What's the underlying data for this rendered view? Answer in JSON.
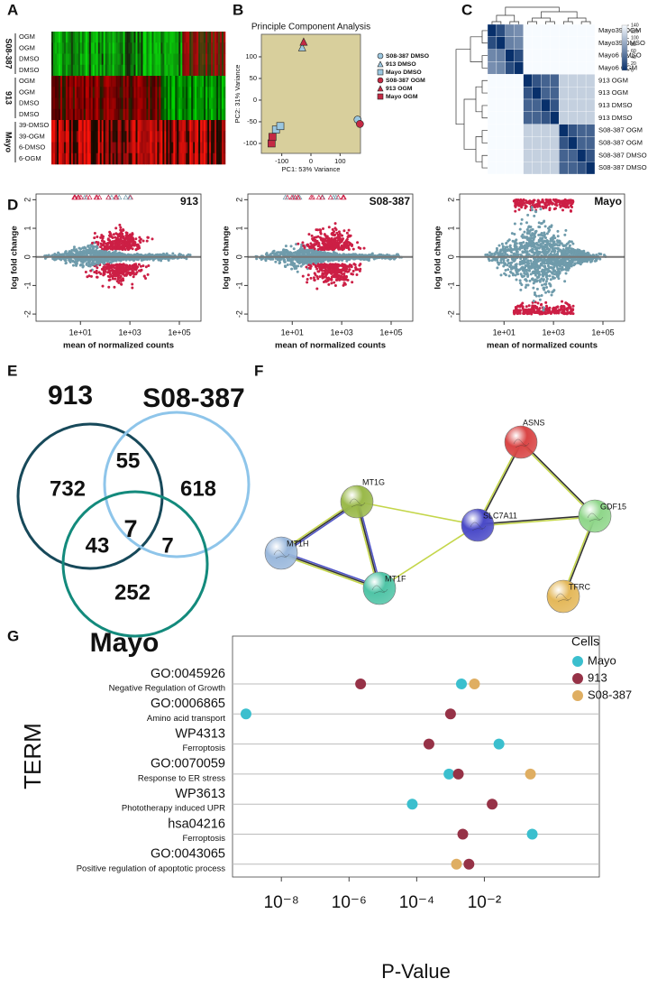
{
  "panel_labels": [
    "A",
    "B",
    "C",
    "D",
    "E",
    "F",
    "G"
  ],
  "heatmap_a": {
    "groups": [
      {
        "name": "S08-387",
        "rows": [
          "OGM",
          "OGM",
          "DMSO",
          "DMSO"
        ]
      },
      {
        "name": "913",
        "rows": [
          "OGM",
          "OGM",
          "DMSO",
          "DMSO"
        ]
      },
      {
        "name": "Mayo",
        "rows": [
          "39-DMSO",
          "39-OGM",
          "6-DMSO",
          "6-OGM"
        ]
      }
    ]
  },
  "chart_data": [
    {
      "type": "scatter",
      "title": "Principle Component Analysis",
      "xlabel": "PC1: 53% Variance",
      "ylabel": "PC2: 31% Variance",
      "xlim": [
        -170,
        170
      ],
      "ylim": [
        -123,
        152
      ],
      "xticks": [
        -100,
        0,
        100
      ],
      "yticks": [
        -100,
        -50,
        0,
        50,
        100
      ],
      "background": "#d8cf9c",
      "series": [
        {
          "name": "S08-387 DMSO",
          "color": "#9bc7e0",
          "marker": "circle",
          "x": [
            160
          ],
          "y": [
            -45
          ]
        },
        {
          "name": "913 DMSO",
          "color": "#9bc7e0",
          "marker": "triangle",
          "x": [
            -30
          ],
          "y": [
            122
          ]
        },
        {
          "name": "Mayo DMSO",
          "color": "#9bc7e0",
          "marker": "square",
          "x": [
            -120,
            -105
          ],
          "y": [
            -68,
            -60
          ]
        },
        {
          "name": "S08-387 OGM",
          "color": "#c42a44",
          "marker": "circle",
          "x": [
            168
          ],
          "y": [
            -55
          ]
        },
        {
          "name": "913 OGM",
          "color": "#c42a44",
          "marker": "triangle",
          "x": [
            -25
          ],
          "y": [
            135
          ]
        },
        {
          "name": "Mayo OGM",
          "color": "#c42a44",
          "marker": "square",
          "x": [
            -135,
            -132
          ],
          "y": [
            -100,
            -85
          ]
        }
      ]
    },
    {
      "type": "heatmap",
      "rows": [
        "Mayo39 OGM",
        "Mayo39 DMSO",
        "Mayo6 DMSO",
        "Mayo6 OGM",
        "913 OGM",
        "913 OGM",
        "913 DMSO",
        "913 DMSO",
        "S08-387 OGM",
        "S08-387 OGM",
        "S08-387 DMSO",
        "S08-387 DMSO"
      ],
      "values": [
        [
          0,
          20,
          60,
          65,
          140,
          140,
          140,
          140,
          140,
          140,
          140,
          140
        ],
        [
          20,
          0,
          55,
          60,
          140,
          140,
          140,
          140,
          140,
          140,
          140,
          140
        ],
        [
          60,
          55,
          0,
          20,
          140,
          140,
          140,
          140,
          140,
          140,
          140,
          140
        ],
        [
          65,
          60,
          20,
          0,
          140,
          140,
          140,
          140,
          140,
          140,
          140,
          140
        ],
        [
          140,
          140,
          140,
          140,
          0,
          25,
          35,
          35,
          110,
          110,
          110,
          110
        ],
        [
          140,
          140,
          140,
          140,
          25,
          0,
          35,
          35,
          110,
          110,
          110,
          110
        ],
        [
          140,
          140,
          140,
          140,
          35,
          35,
          0,
          25,
          110,
          110,
          110,
          110
        ],
        [
          140,
          140,
          140,
          140,
          35,
          35,
          25,
          0,
          110,
          110,
          110,
          110
        ],
        [
          140,
          140,
          140,
          140,
          110,
          110,
          110,
          110,
          0,
          25,
          35,
          35
        ],
        [
          140,
          140,
          140,
          140,
          110,
          110,
          110,
          110,
          25,
          0,
          35,
          35
        ],
        [
          140,
          140,
          140,
          140,
          110,
          110,
          110,
          110,
          35,
          35,
          0,
          25
        ],
        [
          140,
          140,
          140,
          140,
          110,
          110,
          110,
          110,
          35,
          35,
          25,
          0
        ]
      ],
      "zlim": [
        0,
        140
      ],
      "zticks": [
        0,
        20,
        40,
        60,
        80,
        100,
        120,
        140
      ],
      "color_low": "#08306b",
      "color_high": "#f7fbff"
    },
    {
      "type": "ma",
      "title": "913",
      "xlabel": "mean of normalized counts",
      "ylabel": "log fold change",
      "log_x": true,
      "xlim": [
        0.16,
        750000
      ],
      "ylim": [
        -2.25,
        2.2
      ],
      "xticks": [
        {
          "value": 10,
          "label": "1e+01"
        },
        {
          "value": 1000,
          "label": "1e+03"
        },
        {
          "value": 100000,
          "label": "1e+05"
        }
      ],
      "yticks": [
        -2,
        -1,
        0,
        1,
        2
      ]
    },
    {
      "type": "ma",
      "title": "S08-387",
      "xlabel": "mean of normalized counts",
      "ylabel": "log fold change",
      "log_x": true,
      "xlim": [
        0.16,
        750000
      ],
      "ylim": [
        -2.25,
        2.2
      ],
      "xticks": [
        {
          "value": 10,
          "label": "1e+01"
        },
        {
          "value": 1000,
          "label": "1e+03"
        },
        {
          "value": 100000,
          "label": "1e+05"
        }
      ],
      "yticks": [
        -2,
        -1,
        0,
        1,
        2
      ]
    },
    {
      "type": "ma",
      "title": "Mayo",
      "xlabel": "mean of normalized counts",
      "ylabel": "log fold change",
      "log_x": true,
      "xlim": [
        0.16,
        750000
      ],
      "ylim": [
        -2.25,
        2.2
      ],
      "xticks": [
        {
          "value": 10,
          "label": "1e+01"
        },
        {
          "value": 1000,
          "label": "1e+03"
        },
        {
          "value": 100000,
          "label": "1e+05"
        }
      ],
      "yticks": [
        -2,
        -1,
        0,
        1,
        2
      ]
    },
    {
      "type": "dot",
      "xlabel": "P-Value",
      "ylabel": "TERM",
      "legend_title": "Cells",
      "log_x": true,
      "xlim": [
        3.6e-10,
        25
      ],
      "xticks": [
        {
          "value": 1e-08,
          "label": "10⁻⁸"
        },
        {
          "value": 1e-06,
          "label": "10⁻⁶"
        },
        {
          "value": 0.0001,
          "label": "10⁻⁴"
        },
        {
          "value": 0.01,
          "label": "10⁻²"
        }
      ],
      "categories": [
        "GO:0045926",
        "GO:0006865",
        "WP4313",
        "GO:0070059",
        "WP3613",
        "hsa04216",
        "GO:0043065"
      ],
      "descriptions": [
        "Negative Regulation of Growth",
        "Amino acid transport",
        "Ferroptosis",
        "Response to ER stress",
        "Phototherapy induced UPR",
        "Ferroptosis",
        "Positive regulation of apoptotic process"
      ],
      "series": [
        {
          "name": "Mayo",
          "color": "#3bbfce",
          "values": [
            0.0021,
            9e-10,
            0.027,
            0.0009,
            7.4e-05,
            0.26,
            null
          ]
        },
        {
          "name": "913",
          "color": "#963247",
          "values": [
            2.2e-06,
            0.001,
            0.00023,
            0.0017,
            0.017,
            0.0023,
            0.0035
          ]
        },
        {
          "name": "S08-387",
          "color": "#dfae62",
          "values": [
            0.0051,
            null,
            null,
            0.23,
            null,
            null,
            0.0015
          ]
        }
      ]
    }
  ],
  "venn": {
    "sets": [
      {
        "name": "913",
        "color": "#17495a"
      },
      {
        "name": "S08-387",
        "color": "#8ec5ea"
      },
      {
        "name": "Mayo",
        "color": "#138a7c"
      }
    ],
    "counts": [
      732,
      55,
      618,
      43,
      7,
      7,
      252
    ],
    "center_color": "#c0173f"
  },
  "network": {
    "nodes": [
      {
        "label": "ASNS",
        "color": "#d94545"
      },
      {
        "label": "MT1G",
        "color": "#9ab94a"
      },
      {
        "label": "SLC7A11",
        "color": "#4a4ac8"
      },
      {
        "label": "GDF15",
        "color": "#8fd68a"
      },
      {
        "label": "MT1H",
        "color": "#9ab8dc"
      },
      {
        "label": "MT1F",
        "color": "#4fc4a6"
      },
      {
        "label": "TFRC",
        "color": "#e4b85a"
      }
    ]
  }
}
